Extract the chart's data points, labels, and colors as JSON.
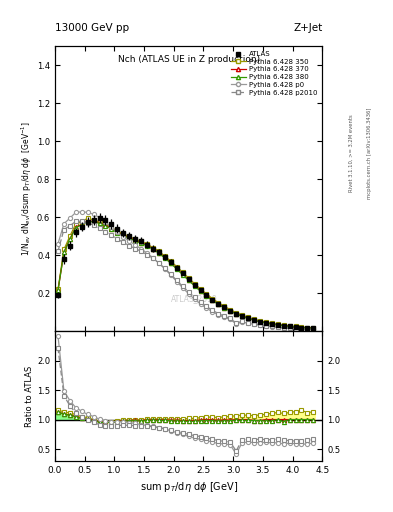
{
  "title_top": "13000 GeV pp",
  "title_right": "Z+Jet",
  "plot_title": "Nch (ATLAS UE in Z production)",
  "ylabel_main": "1/N_{ev} dN_{ev}/dsum p_{T}/d#eta d#phi  [GeV^{-1}]",
  "ylabel_ratio": "Ratio to ATLAS",
  "xlabel": "sum p_{T}/d#eta d#phi [GeV]",
  "watermark": "ATLAS_2019",
  "rivet_text": "Rivet 3.1.10, >= 3.2M events",
  "arxiv_text": "mcplots.cern.ch [arXiv:1306.3436]",
  "xlim": [
    0,
    4.5
  ],
  "ylim_main": [
    0,
    1.5
  ],
  "ylim_ratio": [
    0.3,
    2.5
  ],
  "yticks_main": [
    0.2,
    0.4,
    0.6,
    0.8,
    1.0,
    1.2,
    1.4
  ],
  "yticks_ratio": [
    0.5,
    1.0,
    1.5,
    2.0
  ],
  "x_data": [
    0.05,
    0.15,
    0.25,
    0.35,
    0.45,
    0.55,
    0.65,
    0.75,
    0.85,
    0.95,
    1.05,
    1.15,
    1.25,
    1.35,
    1.45,
    1.55,
    1.65,
    1.75,
    1.85,
    1.95,
    2.05,
    2.15,
    2.25,
    2.35,
    2.45,
    2.55,
    2.65,
    2.75,
    2.85,
    2.95,
    3.05,
    3.15,
    3.25,
    3.35,
    3.45,
    3.55,
    3.65,
    3.75,
    3.85,
    3.95,
    4.05,
    4.15,
    4.25,
    4.35
  ],
  "atlas_y": [
    0.19,
    0.38,
    0.45,
    0.52,
    0.55,
    0.575,
    0.585,
    0.595,
    0.585,
    0.565,
    0.54,
    0.515,
    0.5,
    0.485,
    0.475,
    0.455,
    0.435,
    0.415,
    0.39,
    0.365,
    0.335,
    0.305,
    0.275,
    0.245,
    0.215,
    0.188,
    0.165,
    0.145,
    0.125,
    0.108,
    0.092,
    0.079,
    0.068,
    0.059,
    0.051,
    0.044,
    0.038,
    0.033,
    0.029,
    0.025,
    0.022,
    0.019,
    0.017,
    0.015
  ],
  "atlas_err": [
    0.015,
    0.025,
    0.025,
    0.025,
    0.025,
    0.025,
    0.025,
    0.025,
    0.025,
    0.025,
    0.022,
    0.022,
    0.02,
    0.019,
    0.018,
    0.017,
    0.016,
    0.015,
    0.014,
    0.013,
    0.012,
    0.011,
    0.01,
    0.009,
    0.008,
    0.007,
    0.006,
    0.006,
    0.005,
    0.005,
    0.004,
    0.004,
    0.003,
    0.003,
    0.003,
    0.002,
    0.002,
    0.002,
    0.002,
    0.002,
    0.001,
    0.001,
    0.001,
    0.001
  ],
  "p350_y": [
    0.22,
    0.43,
    0.5,
    0.565,
    0.575,
    0.595,
    0.585,
    0.575,
    0.562,
    0.545,
    0.528,
    0.512,
    0.498,
    0.485,
    0.472,
    0.458,
    0.44,
    0.42,
    0.395,
    0.368,
    0.34,
    0.31,
    0.28,
    0.25,
    0.222,
    0.196,
    0.172,
    0.15,
    0.131,
    0.114,
    0.098,
    0.085,
    0.073,
    0.063,
    0.055,
    0.048,
    0.042,
    0.037,
    0.032,
    0.028,
    0.025,
    0.022,
    0.019,
    0.017
  ],
  "p370_y": [
    0.215,
    0.415,
    0.485,
    0.548,
    0.562,
    0.58,
    0.578,
    0.57,
    0.558,
    0.54,
    0.522,
    0.506,
    0.492,
    0.479,
    0.466,
    0.452,
    0.434,
    0.413,
    0.388,
    0.36,
    0.33,
    0.3,
    0.27,
    0.241,
    0.213,
    0.188,
    0.164,
    0.143,
    0.124,
    0.107,
    0.092,
    0.079,
    0.068,
    0.058,
    0.05,
    0.044,
    0.038,
    0.033,
    0.029,
    0.025,
    0.022,
    0.019,
    0.017,
    0.015
  ],
  "p380_y": [
    0.215,
    0.415,
    0.483,
    0.545,
    0.56,
    0.577,
    0.575,
    0.567,
    0.555,
    0.537,
    0.519,
    0.503,
    0.489,
    0.476,
    0.463,
    0.449,
    0.431,
    0.41,
    0.385,
    0.357,
    0.327,
    0.297,
    0.267,
    0.238,
    0.21,
    0.185,
    0.162,
    0.141,
    0.122,
    0.106,
    0.091,
    0.078,
    0.067,
    0.058,
    0.05,
    0.043,
    0.037,
    0.033,
    0.028,
    0.025,
    0.022,
    0.019,
    0.017,
    0.015
  ],
  "p0_y": [
    0.46,
    0.565,
    0.595,
    0.625,
    0.628,
    0.625,
    0.615,
    0.598,
    0.573,
    0.546,
    0.52,
    0.496,
    0.474,
    0.454,
    0.433,
    0.411,
    0.386,
    0.358,
    0.328,
    0.295,
    0.261,
    0.228,
    0.197,
    0.168,
    0.143,
    0.121,
    0.102,
    0.086,
    0.073,
    0.062,
    0.038,
    0.048,
    0.042,
    0.036,
    0.031,
    0.027,
    0.023,
    0.02,
    0.017,
    0.015,
    0.013,
    0.011,
    0.01,
    0.009
  ],
  "p2010_y": [
    0.42,
    0.535,
    0.555,
    0.578,
    0.578,
    0.57,
    0.558,
    0.543,
    0.524,
    0.504,
    0.485,
    0.467,
    0.45,
    0.435,
    0.42,
    0.403,
    0.383,
    0.358,
    0.33,
    0.299,
    0.267,
    0.236,
    0.206,
    0.178,
    0.153,
    0.13,
    0.11,
    0.093,
    0.079,
    0.067,
    0.043,
    0.052,
    0.045,
    0.039,
    0.034,
    0.029,
    0.025,
    0.022,
    0.019,
    0.016,
    0.014,
    0.012,
    0.011,
    0.01
  ],
  "color_atlas": "#000000",
  "color_p350": "#999900",
  "color_p370": "#cc0000",
  "color_p380": "#339900",
  "color_p0": "#999999",
  "color_p2010": "#888888",
  "band_yellow": "#ffff88",
  "band_green": "#88ff88",
  "bg_color": "#ffffff"
}
